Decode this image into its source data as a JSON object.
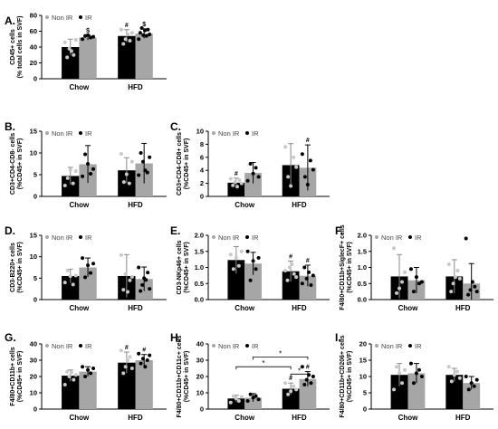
{
  "colors": {
    "non_ir": "#000000",
    "ir": "#a6a6a6",
    "point": "#c8c8c8",
    "axis": "#000000"
  },
  "group_labels": [
    "Chow",
    "HFD"
  ],
  "legend": {
    "non_ir": "Non IR",
    "ir": "IR"
  },
  "chart_data": [
    {
      "type": "bar",
      "panel": "A.",
      "ylabel": [
        "CD45+ cells",
        "(% total cells in SVF)"
      ],
      "ylim": [
        0,
        80
      ],
      "yticks": [
        "0",
        "20",
        "40",
        "60",
        "80"
      ],
      "categories": [
        "Chow",
        "HFD"
      ],
      "series": [
        {
          "name": "Non IR",
          "values": [
            40,
            54
          ],
          "errors": [
            10,
            8
          ],
          "points": [
            [
              46,
              27,
              38,
              35,
              30,
              49
            ],
            [
              62,
              44,
              50,
              56,
              48,
              58
            ]
          ]
        },
        {
          "name": "IR",
          "values": [
            52,
            57
          ],
          "errors": [
            3,
            6
          ],
          "points": [
            [
              50,
              54,
              55,
              52,
              53
            ],
            [
              50,
              58,
              64,
              55,
              61,
              54,
              62,
              56
            ]
          ]
        }
      ],
      "marks": [
        [
          null,
          "$"
        ],
        [
          "#",
          "$"
        ]
      ]
    },
    {
      "type": "bar",
      "panel": "B.",
      "ylabel": [
        "CD3+CD4-CD8- cells",
        "(%CD45+ in SVF)"
      ],
      "ylim": [
        0,
        15
      ],
      "yticks": [
        "0",
        "5",
        "10",
        "15"
      ],
      "categories": [
        "Chow",
        "HFD"
      ],
      "series": [
        {
          "name": "Non IR",
          "values": [
            4.7,
            6.0
          ],
          "errors": [
            2.0,
            2.9
          ],
          "points": [
            [
              2.5,
              4.2,
              6.1,
              3.0,
              5.8
            ],
            [
              9.8,
              3.3,
              5.1,
              3.0,
              8.0
            ]
          ]
        },
        {
          "name": "IR",
          "values": [
            7.4,
            7.6
          ],
          "errors": [
            4.3,
            4.6
          ],
          "points": [
            [
              4.6,
              9.7,
              7.5,
              5.2,
              6.3
            ],
            [
              4.9,
              10.0,
              8.0,
              6.0,
              5.5,
              9.0
            ]
          ]
        }
      ],
      "marks": [
        [
          null,
          null
        ],
        [
          null,
          null
        ]
      ]
    },
    {
      "type": "bar",
      "panel": "C.",
      "ylabel": [
        "CD3+CD4-CD8+ cells",
        "(%CD45+ in SVF)"
      ],
      "ylim": [
        0,
        10
      ],
      "yticks": [
        "0",
        "2",
        "4",
        "6",
        "8",
        "10"
      ],
      "categories": [
        "Chow",
        "HFD"
      ],
      "series": [
        {
          "name": "Non IR",
          "values": [
            2.1,
            4.8
          ],
          "errors": [
            0.7,
            3.3
          ],
          "points": [
            [
              2.7,
              1.7,
              2.2,
              1.5,
              2.5,
              2.0
            ],
            [
              7.6,
              3.0,
              1.6,
              6.0,
              4.5
            ]
          ]
        },
        {
          "name": "IR",
          "values": [
            3.6,
            4.4
          ],
          "errors": [
            1.6,
            3.5
          ],
          "points": [
            [
              2.4,
              5.0,
              3.5,
              4.4,
              3.0
            ],
            [
              6.5,
              3.0,
              1.8,
              5.5,
              4.1
            ]
          ]
        }
      ],
      "marks": [
        [
          "#",
          null
        ],
        [
          null,
          "#"
        ]
      ]
    },
    {
      "type": "bar",
      "panel": "D.",
      "ylabel": [
        "CD3-B220+ cells",
        "(%CD45+ in SVF)"
      ],
      "ylim": [
        0,
        15
      ],
      "yticks": [
        "0",
        "5",
        "10",
        "15"
      ],
      "categories": [
        "Chow",
        "HFD"
      ],
      "series": [
        {
          "name": "Non IR",
          "values": [
            5.5,
            5.5
          ],
          "errors": [
            1.6,
            5.0
          ],
          "points": [
            [
              4.0,
              6.8,
              5.5,
              3.5,
              5.6
            ],
            [
              10.4,
              2.3,
              6.0,
              1.8,
              4.5,
              5.3
            ]
          ]
        },
        {
          "name": "IR",
          "values": [
            7.5,
            4.8
          ],
          "errors": [
            2.2,
            2.8
          ],
          "points": [
            [
              9.7,
              5.2,
              8.0,
              6.2,
              8.4
            ],
            [
              7.5,
              2.0,
              3.4,
              5.0,
              4.6,
              6.3,
              2.5
            ]
          ]
        }
      ],
      "marks": [
        [
          null,
          null
        ],
        [
          null,
          null
        ]
      ]
    },
    {
      "type": "bar",
      "panel": "E.",
      "ylabel": [
        "CD3-NKp46+ cells",
        "(%CD45+ in SVF)"
      ],
      "ylim": [
        0,
        2.0
      ],
      "yticks": [
        "0.0",
        "0.5",
        "1.0",
        "1.5",
        "2.0"
      ],
      "categories": [
        "Chow",
        "HFD"
      ],
      "series": [
        {
          "name": "Non IR",
          "values": [
            1.23,
            0.88
          ],
          "errors": [
            0.42,
            0.32
          ],
          "points": [
            [
              1.4,
              0.95,
              1.3,
              1.05,
              1.5
            ],
            [
              0.9,
              0.6,
              1.0,
              1.1,
              0.8,
              0.7
            ]
          ]
        },
        {
          "name": "IR",
          "values": [
            1.12,
            0.74
          ],
          "errors": [
            0.35,
            0.33
          ],
          "points": [
            [
              1.5,
              0.6,
              1.2,
              0.95,
              1.3
            ],
            [
              0.5,
              1.0,
              0.65,
              0.85,
              0.45,
              0.75
            ]
          ]
        }
      ],
      "marks": [
        [
          null,
          null
        ],
        [
          "#",
          "#"
        ]
      ]
    },
    {
      "type": "bar",
      "panel": "F.",
      "ylabel": [
        "F4/80+CD11b+SiglecF+ cells",
        "(%CD45+ in SVF)"
      ],
      "ylim": [
        0,
        2.0
      ],
      "yticks": [
        "0.0",
        "0.5",
        "1.0",
        "1.5",
        "2.0"
      ],
      "categories": [
        "Chow",
        "HFD"
      ],
      "series": [
        {
          "name": "Non IR",
          "values": [
            0.72,
            0.72
          ],
          "errors": [
            0.68,
            0.52
          ],
          "points": [
            [
              1.6,
              0.2,
              0.35,
              0.55,
              0.85
            ],
            [
              1.1,
              0.25,
              0.5,
              0.7,
              0.9,
              0.65
            ]
          ]
        },
        {
          "name": "IR",
          "values": [
            0.6,
            0.5
          ],
          "errors": [
            0.4,
            0.62
          ],
          "points": [
            [
              0.95,
              0.25,
              0.7,
              0.5,
              0.55
            ],
            [
              1.9,
              0.15,
              0.3,
              0.55,
              0.4,
              0.25
            ]
          ]
        }
      ],
      "marks": [
        [
          null,
          null
        ],
        [
          null,
          null
        ]
      ]
    },
    {
      "type": "bar",
      "panel": "G.",
      "ylabel": [
        "F4/80+CD11b+ cells",
        "(%CD45+ in SVF)"
      ],
      "ylim": [
        0,
        40
      ],
      "yticks": [
        "0",
        "10",
        "20",
        "30",
        "40"
      ],
      "categories": [
        "Chow",
        "HFD"
      ],
      "series": [
        {
          "name": "Non IR",
          "values": [
            20.5,
            28.5
          ],
          "errors": [
            3.5,
            6.5
          ],
          "points": [
            [
              15.0,
              23.0,
              20.0,
              22.5,
              18.0,
              21.0
            ],
            [
              36.0,
              22.0,
              26.0,
              30.0,
              32.0,
              25.0
            ]
          ]
        },
        {
          "name": "IR",
          "values": [
            23.0,
            30.0
          ],
          "errors": [
            3.0,
            3.5
          ],
          "points": [
            [
              26.0,
              20.0,
              24.0,
              22.0,
              25.0
            ],
            [
              34.0,
              28.0,
              31.0,
              26.0,
              30.0,
              33.0
            ]
          ]
        }
      ],
      "marks": [
        [
          null,
          null
        ],
        [
          "#",
          "#"
        ]
      ]
    },
    {
      "type": "bar",
      "panel": "H.",
      "ylabel": [
        "F4/80+CD11b+CD11c+ cells",
        "(%CD45+ in SVF)"
      ],
      "ylim": [
        0,
        40
      ],
      "yticks": [
        "0",
        "10",
        "20",
        "30",
        "40"
      ],
      "categories": [
        "Chow",
        "HFD"
      ],
      "series": [
        {
          "name": "Non IR",
          "values": [
            6.5,
            12.5
          ],
          "errors": [
            2.0,
            3.5
          ],
          "points": [
            [
              4.0,
              8.0,
              6.5,
              5.0,
              7.5
            ],
            [
              16.0,
              9.0,
              11.0,
              14.0,
              12.0
            ]
          ]
        },
        {
          "name": "IR",
          "values": [
            7.0,
            18.5
          ],
          "errors": [
            2.5,
            4.5
          ],
          "points": [
            [
              5.0,
              9.0,
              7.0,
              8.0,
              6.0
            ],
            [
              26.0,
              15.0,
              18.0,
              21.0,
              16.0,
              20.0
            ]
          ]
        }
      ],
      "marks": [
        [
          null,
          null
        ],
        [
          "#",
          "#"
        ]
      ],
      "brackets": [
        {
          "label": "*",
          "from": [
            0,
            1
          ],
          "to": [
            1,
            1
          ],
          "level": 32
        },
        {
          "label": "*",
          "from": [
            0,
            0
          ],
          "to": [
            1,
            0
          ],
          "level": 26
        },
        {
          "label": "*",
          "from": [
            1,
            0
          ],
          "to": [
            1,
            1
          ],
          "level": 21.5
        }
      ]
    },
    {
      "type": "bar",
      "panel": "I.",
      "ylabel": [
        "F4/80+CD11b+CD206+ cells",
        "(%CD45+ in SVF)"
      ],
      "ylim": [
        0,
        20
      ],
      "yticks": [
        "0",
        "5",
        "10",
        "15",
        "20"
      ],
      "categories": [
        "Chow",
        "HFD"
      ],
      "series": [
        {
          "name": "Non IR",
          "values": [
            10.5,
            10.5
          ],
          "errors": [
            3.5,
            2.0
          ],
          "points": [
            [
              6.0,
              13.0,
              11.0,
              8.0,
              12.0
            ],
            [
              13.0,
              8.5,
              10.5,
              11.5,
              9.5
            ]
          ]
        },
        {
          "name": "IR",
          "values": [
            11.0,
            8.0
          ],
          "errors": [
            3.0,
            2.0
          ],
          "points": [
            [
              14.0,
              8.0,
              11.0,
              12.0,
              10.0
            ],
            [
              10.0,
              6.0,
              8.0,
              7.0,
              9.0
            ]
          ]
        }
      ],
      "marks": [
        [
          null,
          null
        ],
        [
          null,
          null
        ]
      ]
    }
  ]
}
